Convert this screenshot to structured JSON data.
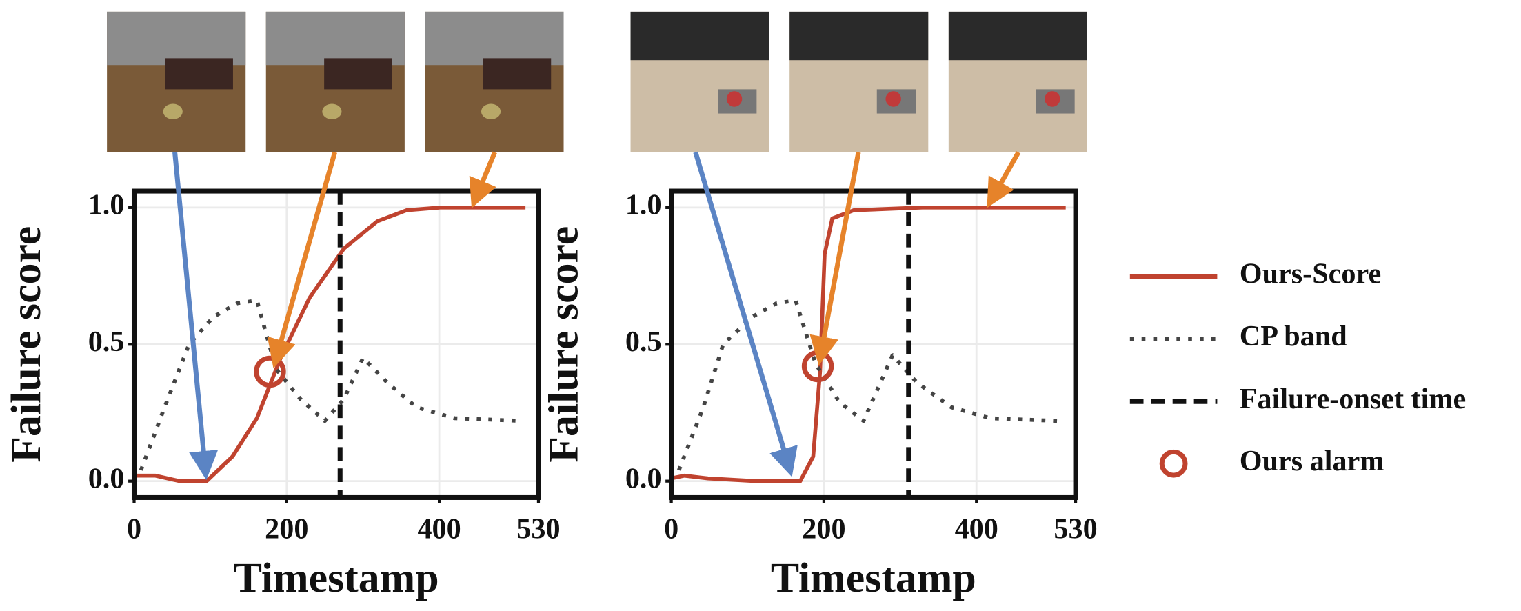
{
  "chart_data": [
    {
      "type": "line",
      "xlabel": "Timestamp",
      "ylabel": "Failure score",
      "xlim": [
        0,
        530
      ],
      "xticks": [
        0,
        200,
        400,
        530
      ],
      "ylim": [
        -0.06,
        1.06
      ],
      "yticks": [
        {
          "value": 0,
          "label": "0.0"
        },
        {
          "value": 0.5,
          "label": "0.5"
        },
        {
          "value": 1,
          "label": "1.0"
        }
      ],
      "grid": true,
      "series": [
        {
          "name": "Ours-Score",
          "color": "#c0432f",
          "style": "solid",
          "x": [
            0,
            28,
            60,
            95,
            129,
            161,
            192,
            230,
            275,
            319,
            357,
            401,
            513
          ],
          "values": [
            0.02,
            0.02,
            0,
            0,
            0.09,
            0.23,
            0.45,
            0.67,
            0.85,
            0.95,
            0.99,
            1.0,
            1.0
          ]
        },
        {
          "name": "CP band",
          "color": "#444444",
          "style": "dotted",
          "x": [
            9,
            40,
            72,
            104,
            135,
            161,
            186,
            218,
            250,
            275,
            300,
            332,
            370,
            420,
            509
          ],
          "values": [
            0.04,
            0.27,
            0.5,
            0.6,
            0.65,
            0.66,
            0.41,
            0.3,
            0.22,
            0.3,
            0.45,
            0.36,
            0.27,
            0.23,
            0.22
          ]
        }
      ],
      "onset": {
        "name": "Failure-onset time",
        "x": 270,
        "color": "#111111"
      },
      "alarm": {
        "name": "Ours alarm",
        "x": 178,
        "y": 0.4,
        "color": "#c0432f"
      }
    },
    {
      "type": "line",
      "xlabel": "Timestamp",
      "ylabel": "Failure score",
      "xlim": [
        0,
        530
      ],
      "xticks": [
        0,
        200,
        400,
        530
      ],
      "ylim": [
        -0.06,
        1.06
      ],
      "yticks": [
        {
          "value": 0,
          "label": "0.0"
        },
        {
          "value": 0.5,
          "label": "0.5"
        },
        {
          "value": 1,
          "label": "1.0"
        }
      ],
      "grid": true,
      "series": [
        {
          "color": "#c0432f",
          "style": "solid",
          "x": [
            0,
            17,
            48,
            112,
            169,
            186,
            195,
            201,
            211,
            239,
            329,
            517
          ],
          "values": [
            0.01,
            0.02,
            0.01,
            0,
            0,
            0.09,
            0.4,
            0.83,
            0.96,
            0.99,
            1.0,
            1.0
          ]
        },
        {
          "color": "#444444",
          "style": "dotted",
          "x": [
            10,
            42,
            68,
            106,
            138,
            163,
            189,
            220,
            252,
            290,
            322,
            367,
            418,
            507
          ],
          "values": [
            0.04,
            0.27,
            0.5,
            0.6,
            0.65,
            0.66,
            0.43,
            0.29,
            0.22,
            0.46,
            0.36,
            0.27,
            0.23,
            0.22
          ]
        }
      ],
      "onset": {
        "x": 311,
        "color": "#111111"
      },
      "alarm": {
        "x": 192,
        "y": 0.42,
        "color": "#c0432f"
      }
    }
  ]
}
